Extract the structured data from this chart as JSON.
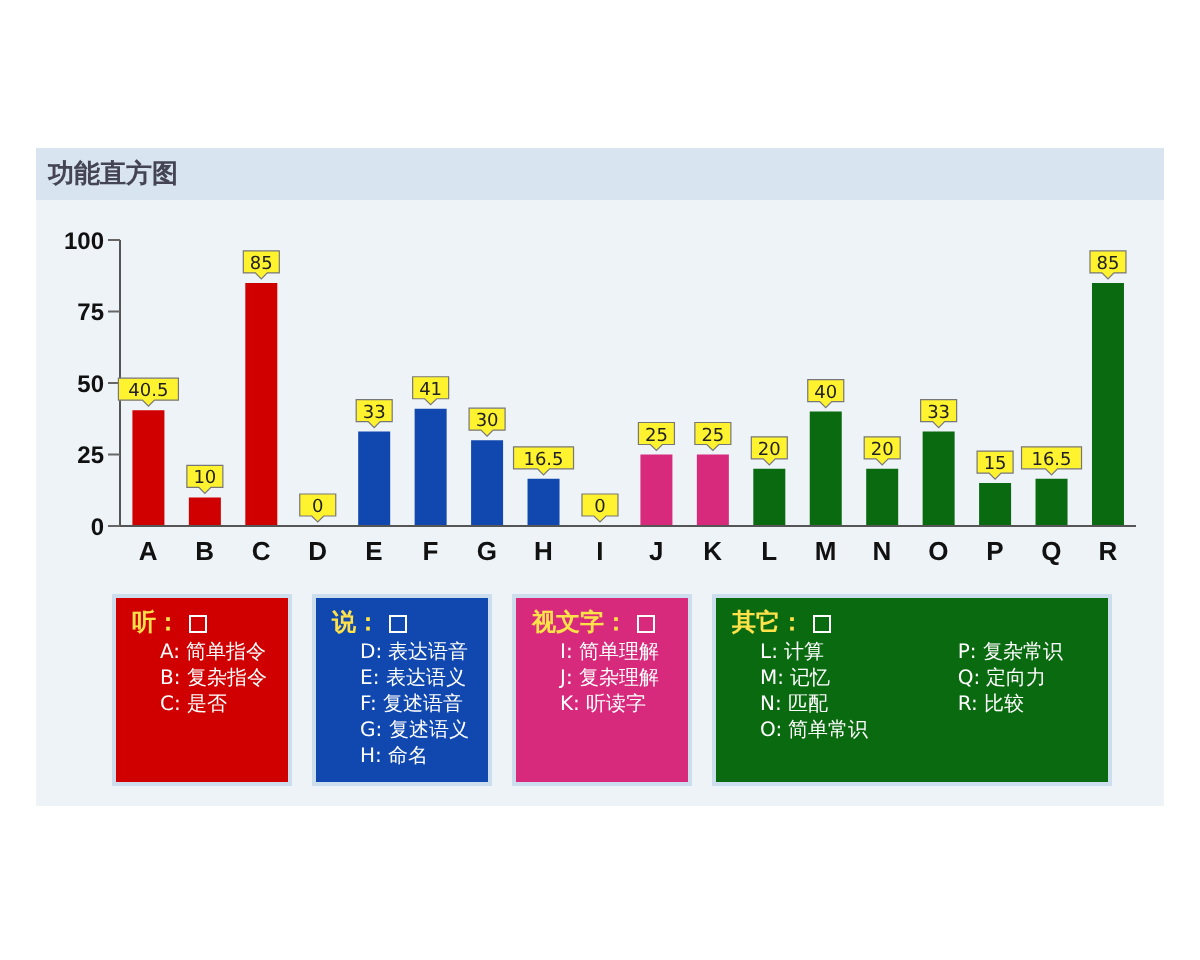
{
  "chart_data": {
    "type": "bar",
    "title": "功能直方图",
    "categories": [
      "A",
      "B",
      "C",
      "D",
      "E",
      "F",
      "G",
      "H",
      "I",
      "J",
      "K",
      "L",
      "M",
      "N",
      "O",
      "P",
      "Q",
      "R"
    ],
    "stacked": true,
    "data_labels": true,
    "ylim": [
      0,
      100
    ],
    "yticks": [
      0,
      25,
      50,
      75,
      100
    ],
    "grid": false,
    "legend": "bottom",
    "series": [
      {
        "name": "听：",
        "color": "#d00000",
        "values": [
          40.5,
          10,
          85,
          null,
          null,
          null,
          null,
          null,
          null,
          null,
          null,
          null,
          null,
          null,
          null,
          null,
          null,
          null
        ]
      },
      {
        "name": "说：",
        "color": "#1048b0",
        "values": [
          null,
          null,
          null,
          0,
          33,
          41,
          30,
          16.5,
          null,
          null,
          null,
          null,
          null,
          null,
          null,
          null,
          null,
          null
        ]
      },
      {
        "name": "视文字：",
        "color": "#d82a7c",
        "values": [
          null,
          null,
          null,
          null,
          null,
          null,
          null,
          null,
          0,
          25,
          25,
          null,
          null,
          null,
          null,
          null,
          null,
          null
        ]
      },
      {
        "name": "其它：",
        "color": "#0a6a10",
        "values": [
          null,
          null,
          null,
          null,
          null,
          null,
          null,
          null,
          null,
          null,
          null,
          20,
          40,
          20,
          33,
          15,
          16.5,
          85
        ]
      }
    ],
    "annotations": [
      "A: 简单指令",
      "B: 复杂指令",
      "C: 是否",
      "D: 表达语音",
      "E: 表达语义",
      "F: 复述语音",
      "G: 复述语义",
      "H: 命名",
      "I: 简单理解",
      "J: 复杂理解",
      "K: 听读字",
      "L: 计算",
      "M: 记忆",
      "N: 匹配",
      "O: 简单常识",
      "P: 复杂常识",
      "Q: 定向力",
      "R: 比较"
    ]
  }
}
